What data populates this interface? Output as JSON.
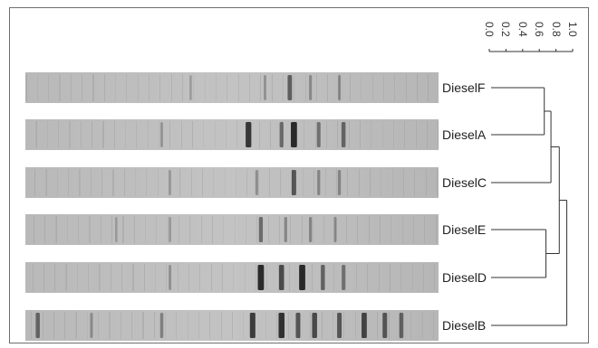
{
  "scale": {
    "ticks": [
      "0.0",
      "0.2",
      "0.4",
      "0.6",
      "0.8",
      "1.0"
    ]
  },
  "lanes": [
    {
      "label": "DieselF",
      "bands": [
        {
          "pos": 0.4,
          "s": 0.1
        },
        {
          "pos": 0.58,
          "s": 0.18
        },
        {
          "pos": 0.64,
          "s": 0.55
        },
        {
          "pos": 0.69,
          "s": 0.22
        },
        {
          "pos": 0.76,
          "s": 0.2
        }
      ]
    },
    {
      "label": "DieselA",
      "bands": [
        {
          "pos": 0.33,
          "s": 0.15
        },
        {
          "pos": 0.54,
          "s": 0.85
        },
        {
          "pos": 0.62,
          "s": 0.45
        },
        {
          "pos": 0.65,
          "s": 0.95
        },
        {
          "pos": 0.71,
          "s": 0.4
        },
        {
          "pos": 0.77,
          "s": 0.5
        }
      ]
    },
    {
      "label": "DieselC",
      "bands": [
        {
          "pos": 0.35,
          "s": 0.12
        },
        {
          "pos": 0.56,
          "s": 0.2
        },
        {
          "pos": 0.65,
          "s": 0.6
        },
        {
          "pos": 0.71,
          "s": 0.25
        },
        {
          "pos": 0.76,
          "s": 0.25
        }
      ]
    },
    {
      "label": "DieselE",
      "bands": [
        {
          "pos": 0.22,
          "s": 0.1
        },
        {
          "pos": 0.35,
          "s": 0.12
        },
        {
          "pos": 0.57,
          "s": 0.45
        },
        {
          "pos": 0.63,
          "s": 0.25
        },
        {
          "pos": 0.69,
          "s": 0.25
        },
        {
          "pos": 0.75,
          "s": 0.2
        }
      ]
    },
    {
      "label": "DieselD",
      "bands": [
        {
          "pos": 0.35,
          "s": 0.18
        },
        {
          "pos": 0.57,
          "s": 0.95
        },
        {
          "pos": 0.62,
          "s": 0.7
        },
        {
          "pos": 0.67,
          "s": 0.95
        },
        {
          "pos": 0.72,
          "s": 0.5
        },
        {
          "pos": 0.77,
          "s": 0.4
        }
      ]
    },
    {
      "label": "DieselB",
      "bands": [
        {
          "pos": 0.03,
          "s": 0.5
        },
        {
          "pos": 0.16,
          "s": 0.2
        },
        {
          "pos": 0.33,
          "s": 0.3
        },
        {
          "pos": 0.55,
          "s": 0.8
        },
        {
          "pos": 0.62,
          "s": 0.9
        },
        {
          "pos": 0.66,
          "s": 0.6
        },
        {
          "pos": 0.7,
          "s": 0.7
        },
        {
          "pos": 0.76,
          "s": 0.6
        },
        {
          "pos": 0.82,
          "s": 0.75
        },
        {
          "pos": 0.87,
          "s": 0.6
        },
        {
          "pos": 0.91,
          "s": 0.5
        }
      ]
    }
  ],
  "dendrogram": {
    "merges": [
      {
        "left": "DieselF",
        "right": "DieselA",
        "height": 0.66
      },
      {
        "left": "DieselE",
        "right": "DieselD",
        "height": 0.68
      },
      {
        "left": "DieselF+DieselA",
        "right": "DieselC",
        "height": 0.74
      },
      {
        "left": "DieselF+DieselA+DieselC",
        "right": "DieselE+DieselD",
        "height": 0.84
      },
      {
        "left": "all-others",
        "right": "DieselB",
        "height": 0.93
      }
    ]
  }
}
